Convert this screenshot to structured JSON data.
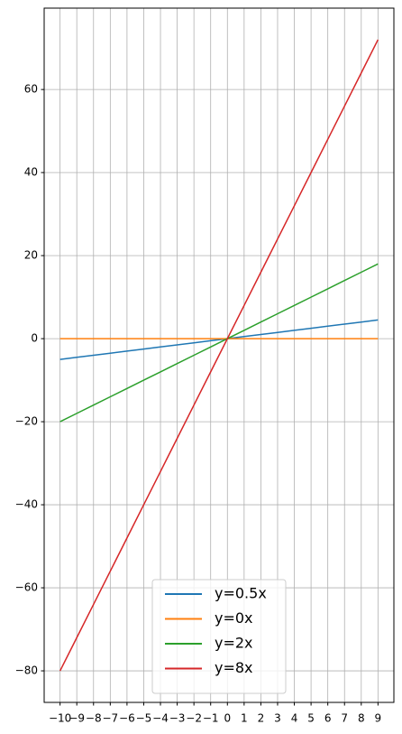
{
  "chart_data": {
    "type": "line",
    "x": [
      -10,
      -9,
      -8,
      -7,
      -6,
      -5,
      -4,
      -3,
      -2,
      -1,
      0,
      1,
      2,
      3,
      4,
      5,
      6,
      7,
      8,
      9
    ],
    "series": [
      {
        "name": "y=0.5x",
        "color": "#1f77b4",
        "values": [
          -5,
          -4.5,
          -4,
          -3.5,
          -3,
          -2.5,
          -2,
          -1.5,
          -1,
          -0.5,
          0,
          0.5,
          1,
          1.5,
          2,
          2.5,
          3,
          3.5,
          4,
          4.5
        ]
      },
      {
        "name": "y=0x",
        "color": "#ff7f0e",
        "values": [
          0,
          0,
          0,
          0,
          0,
          0,
          0,
          0,
          0,
          0,
          0,
          0,
          0,
          0,
          0,
          0,
          0,
          0,
          0,
          0
        ]
      },
      {
        "name": "y=2x",
        "color": "#2ca02c",
        "values": [
          -20,
          -18,
          -16,
          -14,
          -12,
          -10,
          -8,
          -6,
          -4,
          -2,
          0,
          2,
          4,
          6,
          8,
          10,
          12,
          14,
          16,
          18
        ]
      },
      {
        "name": "y=8x",
        "color": "#d62728",
        "values": [
          -80,
          -72,
          -64,
          -56,
          -48,
          -40,
          -32,
          -24,
          -16,
          -8,
          0,
          8,
          16,
          24,
          32,
          40,
          48,
          56,
          64,
          72
        ]
      }
    ],
    "xlim": [
      -10.95,
      9.95
    ],
    "ylim": [
      -87.6,
      79.6
    ],
    "xticks": [
      {
        "value": -10,
        "label": "−10"
      },
      {
        "value": -9,
        "label": "−9"
      },
      {
        "value": -8,
        "label": "−8"
      },
      {
        "value": -7,
        "label": "−7"
      },
      {
        "value": -6,
        "label": "−6"
      },
      {
        "value": -5,
        "label": "−5"
      },
      {
        "value": -4,
        "label": "−4"
      },
      {
        "value": -3,
        "label": "−3"
      },
      {
        "value": -2,
        "label": "−2"
      },
      {
        "value": -1,
        "label": "−1"
      },
      0,
      1,
      2,
      3,
      4,
      5,
      6,
      7,
      8,
      9
    ],
    "yticks": [
      {
        "value": -80,
        "label": "−80"
      },
      {
        "value": -60,
        "label": "−60"
      },
      {
        "value": -40,
        "label": "−40"
      },
      {
        "value": -20,
        "label": "−20"
      },
      0,
      20,
      40,
      60
    ],
    "grid": true,
    "legend": "lower center"
  }
}
